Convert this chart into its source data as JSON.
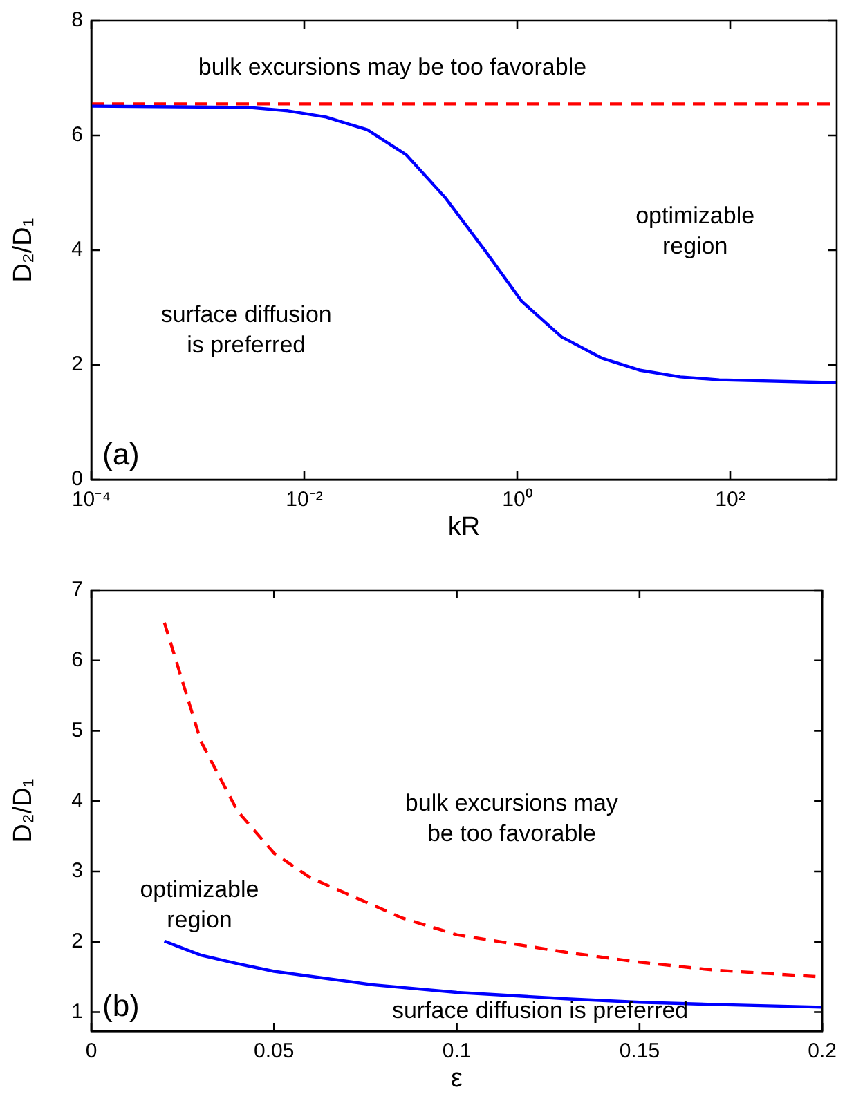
{
  "chart_data": [
    {
      "type": "line",
      "xlabel": "kR",
      "ylabel": "D₂/D₁",
      "log": "x",
      "grid": false,
      "legend": false,
      "marker": "none",
      "xlim": [
        0.0001,
        1000
      ],
      "xticks": [
        {
          "value": 0.0001,
          "label": "10⁻⁴"
        },
        {
          "value": 0.01,
          "label": "10⁻²"
        },
        {
          "value": 1,
          "label": "10⁰"
        },
        {
          "value": 100,
          "label": "10²"
        }
      ],
      "ylim": [
        0,
        8
      ],
      "yticks": [
        0,
        2,
        4,
        6,
        8
      ],
      "series": [
        {
          "color": "#0000ff",
          "line_style": "solid",
          "x": [
            0.0001,
            0.003,
            0.007,
            0.016,
            0.039,
            0.091,
            0.21,
            0.5,
            1.1,
            2.6,
            6.2,
            14,
            34,
            79,
            1000
          ],
          "values": [
            6.51,
            6.49,
            6.43,
            6.32,
            6.1,
            5.66,
            4.92,
            3.99,
            3.11,
            2.49,
            2.12,
            1.91,
            1.79,
            1.74,
            1.69
          ]
        },
        {
          "color": "#ff0000",
          "line_style": "dashed",
          "x": [
            0.0001,
            1000
          ],
          "values": [
            6.55,
            6.55
          ]
        }
      ],
      "annotations": [
        "bulk excursions may be too favorable",
        "optimizable\nregion",
        "surface diffusion\nis preferred",
        "(a)"
      ]
    },
    {
      "type": "line",
      "xlabel": "ε",
      "ylabel": "D₂/D₁",
      "grid": false,
      "legend": false,
      "marker": "none",
      "xlim": [
        0,
        0.2
      ],
      "xticks": [
        0,
        0.05,
        0.1,
        0.15,
        0.2
      ],
      "ylim": [
        0.73,
        7
      ],
      "yticks": [
        1,
        2,
        3,
        4,
        5,
        6,
        7
      ],
      "series": [
        {
          "color": "#ff0000",
          "line_style": "dashed",
          "x": [
            0.02,
            0.03,
            0.04,
            0.05,
            0.06,
            0.085,
            0.1,
            0.13,
            0.15,
            0.17,
            0.2
          ],
          "values": [
            6.54,
            4.85,
            3.86,
            3.26,
            2.91,
            2.34,
            2.1,
            1.85,
            1.71,
            1.6,
            1.5
          ]
        },
        {
          "color": "#0000ff",
          "line_style": "solid",
          "x": [
            0.02,
            0.03,
            0.04,
            0.05,
            0.0768,
            0.1,
            0.13,
            0.15,
            0.17,
            0.2
          ],
          "values": [
            2.01,
            1.81,
            1.69,
            1.58,
            1.39,
            1.28,
            1.19,
            1.14,
            1.11,
            1.07
          ]
        }
      ],
      "annotations": [
        "bulk excursions may\nbe too favorable",
        "optimizable\nregion",
        "surface diffusion is preferred",
        "(b)"
      ]
    }
  ]
}
